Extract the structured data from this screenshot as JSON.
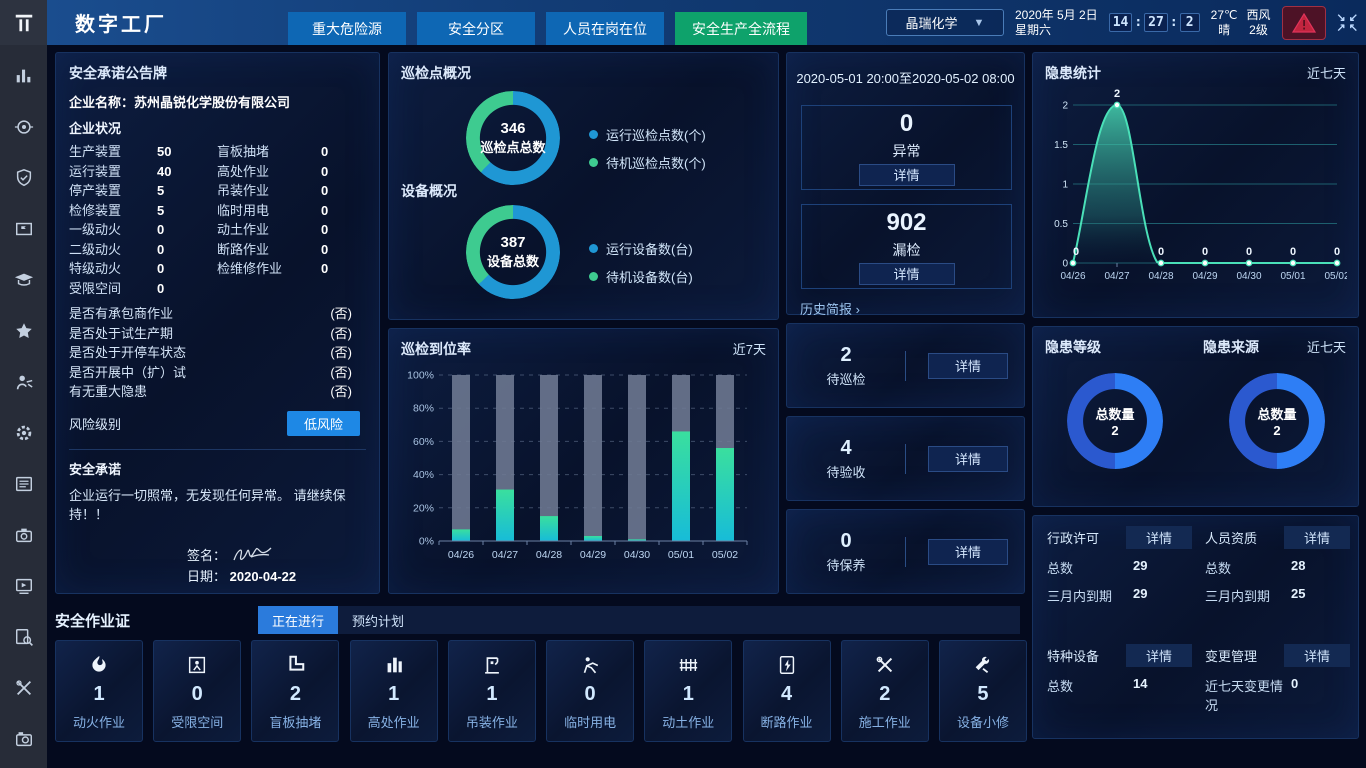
{
  "topbar": {
    "title": "数字工厂",
    "nav": [
      {
        "label": "重大危险源",
        "active": false
      },
      {
        "label": "安全分区",
        "active": false
      },
      {
        "label": "人员在岗在位",
        "active": false
      },
      {
        "label": "安全生产全流程",
        "active": true
      }
    ],
    "company_select": {
      "value": "晶瑞化学"
    },
    "date": {
      "line1": "2020年 5月 2日",
      "line2": "星期六"
    },
    "clock": {
      "h": "14",
      "m": "27",
      "s": "2"
    },
    "weather": {
      "temp": "27℃",
      "condition": "晴",
      "wind_dir": "西风",
      "wind_level": "2级"
    },
    "colors": {
      "nav_blue": "#0e67b4",
      "nav_green": "#0ea26b"
    }
  },
  "sidebar": {
    "icons": [
      "bar-chart",
      "monitor",
      "shield-check",
      "board-flag",
      "graduation-cap",
      "star",
      "worker",
      "gear",
      "form",
      "camera",
      "send-doc",
      "search-doc",
      "tools",
      "device-camera"
    ]
  },
  "commitment": {
    "title": "安全承诺公告牌",
    "company_label": "企业名称：",
    "company_name": "苏州晶锐化学股份有限公司",
    "status_title": "企业状况",
    "stats": [
      {
        "l1": "生产装置",
        "v1": "50",
        "l2": "盲板抽堵",
        "v2": "0"
      },
      {
        "l1": "运行装置",
        "v1": "40",
        "l2": "高处作业",
        "v2": "0"
      },
      {
        "l1": "停产装置",
        "v1": "5",
        "l2": "吊装作业",
        "v2": "0"
      },
      {
        "l1": "检修装置",
        "v1": "5",
        "l2": "临时用电",
        "v2": "0"
      },
      {
        "l1": "一级动火",
        "v1": "0",
        "l2": "动土作业",
        "v2": "0"
      },
      {
        "l1": "二级动火",
        "v1": "0",
        "l2": "断路作业",
        "v2": "0"
      },
      {
        "l1": "特级动火",
        "v1": "0",
        "l2": "检维修作业",
        "v2": "0"
      },
      {
        "l1": "受限空间",
        "v1": "0",
        "l2": "",
        "v2": ""
      }
    ],
    "questions": [
      {
        "label": "是否有承包商作业",
        "value": "(否)"
      },
      {
        "label": "是否处于试生产期",
        "value": "(否)"
      },
      {
        "label": "是否处于开停车状态",
        "value": "(否)"
      },
      {
        "label": "是否开展中（扩）试",
        "value": "(否)"
      },
      {
        "label": "有无重大隐患",
        "value": "(否)"
      }
    ],
    "risk_label": "风险级别",
    "risk_value": "低风险",
    "risk_color": "#1e88e5",
    "promise_title": "安全承诺",
    "promise_text": "企业运行一切照常，无发现任何异常。 请继续保持！！",
    "sign_label": "签名：",
    "date_label": "日期：",
    "sign_date": "2020-04-22"
  },
  "overview": {
    "patrol_title": "巡检点概况",
    "device_title": "设备概况",
    "patrol_donut": {
      "value": "346",
      "label": "巡检点总数",
      "segments": [
        {
          "name": "运行巡检点数(个)",
          "color": "#1f97d4",
          "pct": 62
        },
        {
          "name": "待机巡检点数(个)",
          "color": "#3ecb90",
          "pct": 38
        }
      ]
    },
    "device_donut": {
      "value": "387",
      "label": "设备总数",
      "segments": [
        {
          "name": "运行设备数(台)",
          "color": "#1f97d4",
          "pct": 63
        },
        {
          "name": "待机设备数(台)",
          "color": "#3ecb90",
          "pct": 37
        }
      ]
    }
  },
  "rate_panel": {
    "title": "巡检到位率",
    "range": "近7天"
  },
  "shift": {
    "period": "2020-05-01 20:00至2020-05-02 08:00",
    "boxes": [
      {
        "value": "0",
        "label": "异常",
        "button": "详情"
      },
      {
        "value": "902",
        "label": "漏检",
        "button": "详情"
      }
    ],
    "history_link": "历史简报 ›"
  },
  "todo": [
    {
      "value": "2",
      "label": "待巡检",
      "button": "详情"
    },
    {
      "value": "4",
      "label": "待验收",
      "button": "详情"
    },
    {
      "value": "0",
      "label": "待保养",
      "button": "详情"
    }
  ],
  "danger": {
    "stat_title": "隐患统计",
    "stat_range": "近七天",
    "level_title": "隐患等级",
    "source_title": "隐患来源",
    "donut_range": "近七天",
    "donuts": [
      {
        "center_label": "总数量",
        "value": "2",
        "segments": [
          {
            "color": "#2e7ef5",
            "pct": 50
          },
          {
            "color": "#2b59cf",
            "pct": 50
          }
        ]
      },
      {
        "center_label": "总数量",
        "value": "2",
        "segments": [
          {
            "color": "#2e7ef5",
            "pct": 50
          },
          {
            "color": "#2b59cf",
            "pct": 50
          }
        ]
      }
    ]
  },
  "info_blocks": [
    {
      "title": "行政许可",
      "button": "详情",
      "rows": [
        {
          "label": "总数",
          "value": "29"
        },
        {
          "label": "三月内到期",
          "value": "29"
        }
      ]
    },
    {
      "title": "人员资质",
      "button": "详情",
      "rows": [
        {
          "label": "总数",
          "value": "28"
        },
        {
          "label": "三月内到期",
          "value": "25"
        }
      ]
    },
    {
      "title": "特种设备",
      "button": "详情",
      "rows": [
        {
          "label": "总数",
          "value": "14"
        }
      ]
    },
    {
      "title": "变更管理",
      "button": "详情",
      "rows": [
        {
          "label": "近七天变更情况",
          "value": "0"
        }
      ]
    }
  ],
  "permits": {
    "title": "安全作业证",
    "tabs": [
      {
        "label": "正在进行",
        "active": true
      },
      {
        "label": "预约计划",
        "active": false
      }
    ],
    "cards": [
      {
        "icon": "fire-icon",
        "value": "1",
        "label": "动火作业"
      },
      {
        "icon": "confined-space-icon",
        "value": "0",
        "label": "受限空间"
      },
      {
        "icon": "blind-plate-icon",
        "value": "2",
        "label": "盲板抽堵"
      },
      {
        "icon": "height-work-icon",
        "value": "1",
        "label": "高处作业"
      },
      {
        "icon": "lifting-icon",
        "value": "1",
        "label": "吊装作业"
      },
      {
        "icon": "temp-power-icon",
        "value": "0",
        "label": "临时用电"
      },
      {
        "icon": "earth-work-icon",
        "value": "1",
        "label": "动土作业"
      },
      {
        "icon": "circuit-break-icon",
        "value": "4",
        "label": "断路作业"
      },
      {
        "icon": "construction-icon",
        "value": "2",
        "label": "施工作业"
      },
      {
        "icon": "repair-icon",
        "value": "5",
        "label": "设备小修"
      }
    ]
  },
  "chart_data": [
    {
      "type": "bar",
      "title": "巡检到位率",
      "range_label": "近7天",
      "categories": [
        "04/26",
        "04/27",
        "04/28",
        "04/29",
        "04/30",
        "05/01",
        "05/02"
      ],
      "values": [
        7,
        31,
        15,
        3,
        1,
        66,
        56
      ],
      "ylim": [
        0,
        100
      ],
      "yticks": [
        0,
        20,
        40,
        60,
        80,
        100
      ],
      "ytick_suffix": "%",
      "track_color": "#6e7a93",
      "bar_gradient": [
        "#3adf9e",
        "#17bcd8"
      ],
      "legend_position": "none",
      "grid": true
    },
    {
      "type": "area",
      "title": "隐患统计",
      "range_label": "近七天",
      "categories": [
        "04/26",
        "04/27",
        "04/28",
        "04/29",
        "04/30",
        "05/01",
        "05/02"
      ],
      "values": [
        0,
        2,
        0,
        0,
        0,
        0,
        0
      ],
      "ylim": [
        0,
        2
      ],
      "yticks": [
        0,
        0.5,
        1,
        1.5,
        2
      ],
      "line_color": "#4ae0b8",
      "grid": true,
      "data_labels": true
    }
  ]
}
